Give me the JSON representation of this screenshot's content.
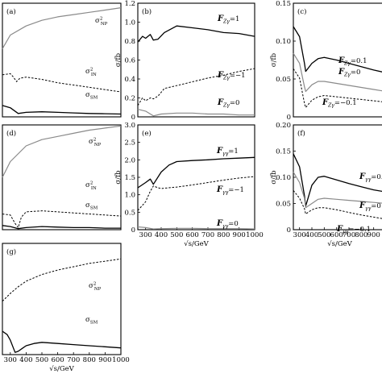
{
  "chart_data": [
    {
      "id": "a",
      "type": "line",
      "panel_label": "(a)",
      "xlim": [
        250,
        1000
      ],
      "ylim": [
        0,
        1
      ],
      "x_ticks": [],
      "y_ticks": [],
      "xlabel": "",
      "ylabel": "",
      "series": [
        {
          "key": "NP",
          "label": "σ²NP",
          "style": "solid-gray",
          "x": [
            250,
            300,
            400,
            500,
            600,
            700,
            800,
            900,
            1000
          ],
          "y": [
            0.6,
            0.72,
            0.8,
            0.85,
            0.88,
            0.9,
            0.92,
            0.94,
            0.96
          ]
        },
        {
          "key": "IN",
          "label": "σ²IN",
          "style": "dashed",
          "x": [
            250,
            300,
            320,
            340,
            360,
            400,
            500,
            600,
            700,
            800,
            900,
            1000
          ],
          "y": [
            0.37,
            0.38,
            0.35,
            0.31,
            0.34,
            0.35,
            0.33,
            0.3,
            0.28,
            0.26,
            0.24,
            0.22
          ]
        },
        {
          "key": "SM",
          "label": "σSM",
          "style": "solid",
          "x": [
            250,
            300,
            350,
            400,
            500,
            600,
            700,
            800,
            900,
            1000
          ],
          "y": [
            0.1,
            0.08,
            0.03,
            0.04,
            0.045,
            0.04,
            0.035,
            0.03,
            0.028,
            0.025
          ]
        }
      ]
    },
    {
      "id": "b",
      "type": "line",
      "panel_label": "(b)",
      "xlim": [
        250,
        1000
      ],
      "ylim": [
        0,
        1.2
      ],
      "x_ticks": [],
      "y_ticks": [
        "0",
        "0.2",
        "0.4",
        "0.6",
        "0.8",
        "1.0",
        "1.2"
      ],
      "xlabel": "",
      "ylabel": "σ/fb",
      "series": [
        {
          "key": "p1",
          "label": "=1",
          "style": "solid",
          "x": [
            250,
            280,
            300,
            330,
            350,
            380,
            420,
            500,
            600,
            700,
            800,
            900,
            1000
          ],
          "y": [
            0.79,
            0.85,
            0.83,
            0.87,
            0.81,
            0.82,
            0.89,
            0.96,
            0.94,
            0.92,
            0.89,
            0.88,
            0.85
          ]
        },
        {
          "key": "m1",
          "label": "=−1",
          "style": "dashed",
          "x": [
            250,
            280,
            300,
            330,
            350,
            380,
            420,
            500,
            600,
            700,
            800,
            900,
            1000
          ],
          "y": [
            0.12,
            0.2,
            0.17,
            0.2,
            0.19,
            0.22,
            0.3,
            0.33,
            0.37,
            0.41,
            0.44,
            0.48,
            0.51
          ]
        },
        {
          "key": "z0",
          "label": "=0",
          "style": "solid-gray",
          "x": [
            250,
            300,
            350,
            400,
            500,
            600,
            700,
            800,
            900,
            1000
          ],
          "y": [
            0.08,
            0.06,
            0.01,
            0.03,
            0.04,
            0.04,
            0.03,
            0.03,
            0.02,
            0.02
          ]
        }
      ]
    },
    {
      "id": "c",
      "type": "line",
      "panel_label": "(c)",
      "xlim": [
        250,
        1000
      ],
      "ylim": [
        0,
        0.17
      ],
      "x_ticks": [],
      "y_ticks": [
        "0",
        "0.05",
        "0.10",
        "0.15"
      ],
      "xlabel": "",
      "ylabel": "σ/fb",
      "series": [
        {
          "key": "p",
          "label": "=0.1",
          "style": "solid",
          "x": [
            250,
            300,
            340,
            350,
            400,
            450,
            500,
            600,
            700,
            800,
            900,
            1000
          ],
          "y": [
            0.135,
            0.12,
            0.08,
            0.068,
            0.08,
            0.087,
            0.089,
            0.085,
            0.08,
            0.075,
            0.07,
            0.066
          ]
        },
        {
          "key": "z",
          "label": "=0",
          "style": "solid-gray",
          "x": [
            250,
            300,
            340,
            350,
            400,
            450,
            500,
            600,
            700,
            800,
            900,
            1000
          ],
          "y": [
            0.095,
            0.08,
            0.045,
            0.038,
            0.048,
            0.053,
            0.053,
            0.05,
            0.047,
            0.044,
            0.041,
            0.038
          ]
        },
        {
          "key": "m",
          "label": "=−0.1",
          "style": "dashed",
          "x": [
            250,
            300,
            340,
            350,
            400,
            450,
            500,
            600,
            700,
            800,
            900,
            1000
          ],
          "y": [
            0.072,
            0.058,
            0.02,
            0.014,
            0.025,
            0.03,
            0.032,
            0.03,
            0.028,
            0.026,
            0.024,
            0.022
          ]
        }
      ]
    },
    {
      "id": "d",
      "type": "line",
      "panel_label": "(d)",
      "xlim": [
        250,
        1000
      ],
      "ylim": [
        0,
        1
      ],
      "x_ticks": [],
      "y_ticks": [],
      "xlabel": "",
      "ylabel": "",
      "series": [
        {
          "key": "NP",
          "label": "σ²NP",
          "style": "solid-gray",
          "x": [
            250,
            300,
            400,
            500,
            600,
            700,
            800,
            900,
            1000
          ],
          "y": [
            0.5,
            0.65,
            0.8,
            0.86,
            0.89,
            0.92,
            0.95,
            0.97,
            0.99
          ]
        },
        {
          "key": "IN",
          "label": "σ²IN",
          "style": "dashed",
          "x": [
            250,
            300,
            330,
            350,
            370,
            400,
            500,
            600,
            700,
            800,
            900,
            1000
          ],
          "y": [
            0.15,
            0.14,
            0.06,
            0.02,
            0.12,
            0.17,
            0.18,
            0.17,
            0.16,
            0.15,
            0.14,
            0.13
          ]
        },
        {
          "key": "SM",
          "label": "σSM",
          "style": "solid",
          "x": [
            250,
            300,
            350,
            400,
            500,
            600,
            700,
            800,
            900,
            1000
          ],
          "y": [
            0.04,
            0.03,
            0.01,
            0.02,
            0.03,
            0.025,
            0.02,
            0.02,
            0.015,
            0.015
          ]
        }
      ]
    },
    {
      "id": "e",
      "type": "line",
      "panel_label": "(e)",
      "xlim": [
        250,
        1000
      ],
      "ylim": [
        0,
        3.0
      ],
      "x_ticks": [
        "300",
        "400",
        "500",
        "600",
        "700",
        "800",
        "900",
        "1000"
      ],
      "y_ticks": [
        "0",
        "0.5",
        "1.0",
        "1.5",
        "2.0",
        "2.5",
        "3.0"
      ],
      "xlabel": "√s/GeV",
      "ylabel": "σ/fb",
      "series": [
        {
          "key": "p1",
          "label": "=1",
          "style": "solid",
          "x": [
            250,
            300,
            330,
            350,
            400,
            450,
            500,
            600,
            700,
            800,
            900,
            1000
          ],
          "y": [
            1.2,
            1.35,
            1.45,
            1.3,
            1.65,
            1.85,
            1.95,
            1.98,
            2.0,
            2.03,
            2.05,
            2.07
          ]
        },
        {
          "key": "m1",
          "label": "=−1",
          "style": "dashed",
          "x": [
            250,
            300,
            330,
            350,
            380,
            400,
            500,
            600,
            700,
            800,
            900,
            1000
          ],
          "y": [
            0.55,
            0.8,
            1.1,
            1.25,
            1.2,
            1.18,
            1.22,
            1.28,
            1.35,
            1.42,
            1.48,
            1.52
          ]
        },
        {
          "key": "z0",
          "label": "=0",
          "style": "solid-gray",
          "x": [
            250,
            300,
            350,
            400,
            500,
            600,
            700,
            800,
            900,
            1000
          ],
          "y": [
            0.08,
            0.06,
            0.02,
            0.03,
            0.04,
            0.04,
            0.03,
            0.03,
            0.03,
            0.02
          ]
        }
      ]
    },
    {
      "id": "f",
      "type": "line",
      "panel_label": "(f)",
      "xlim": [
        250,
        1000
      ],
      "ylim": [
        0,
        0.2
      ],
      "x_ticks": [
        "300",
        "400",
        "500",
        "600",
        "700",
        "800",
        "900"
      ],
      "y_ticks": [
        "0",
        "0.05",
        "0.10",
        "0.15",
        "0.20"
      ],
      "xlabel": "√s/GeV",
      "ylabel": "σ/fb",
      "series": [
        {
          "key": "p",
          "label": "=0.",
          "style": "solid",
          "x": [
            250,
            300,
            340,
            350,
            400,
            450,
            500,
            600,
            700,
            800,
            900,
            1000
          ],
          "y": [
            0.145,
            0.12,
            0.065,
            0.045,
            0.085,
            0.1,
            0.102,
            0.095,
            0.088,
            0.082,
            0.076,
            0.072
          ]
        },
        {
          "key": "z",
          "label": "=0",
          "style": "solid-gray",
          "x": [
            250,
            300,
            340,
            350,
            400,
            450,
            500,
            600,
            700,
            800,
            900,
            1000
          ],
          "y": [
            0.11,
            0.09,
            0.06,
            0.042,
            0.05,
            0.058,
            0.06,
            0.058,
            0.056,
            0.054,
            0.052,
            0.05
          ]
        },
        {
          "key": "m",
          "label": "=−0.1",
          "style": "dashed",
          "x": [
            250,
            300,
            340,
            350,
            400,
            450,
            500,
            600,
            700,
            800,
            900,
            1000
          ],
          "y": [
            0.075,
            0.06,
            0.04,
            0.03,
            0.038,
            0.042,
            0.042,
            0.038,
            0.033,
            0.028,
            0.024,
            0.02
          ]
        }
      ]
    },
    {
      "id": "g",
      "type": "line",
      "panel_label": "(g)",
      "xlim": [
        250,
        1000
      ],
      "ylim": [
        0,
        1
      ],
      "x_ticks": [
        "300",
        "400",
        "500",
        "600",
        "700",
        "800",
        "900",
        "1000"
      ],
      "y_ticks": [],
      "xlabel": "√s/GeV",
      "ylabel": "",
      "series": [
        {
          "key": "NP",
          "label": "σ²NP",
          "style": "dashed",
          "x": [
            250,
            300,
            350,
            400,
            500,
            600,
            700,
            800,
            900,
            1000
          ],
          "y": [
            0.48,
            0.55,
            0.61,
            0.66,
            0.72,
            0.76,
            0.79,
            0.82,
            0.84,
            0.86
          ]
        },
        {
          "key": "SM",
          "label": "σSM",
          "style": "solid",
          "x": [
            250,
            280,
            300,
            330,
            350,
            380,
            400,
            450,
            500,
            600,
            700,
            800,
            900,
            1000
          ],
          "y": [
            0.21,
            0.18,
            0.13,
            0.02,
            0.03,
            0.06,
            0.08,
            0.1,
            0.11,
            0.1,
            0.09,
            0.08,
            0.07,
            0.06
          ]
        }
      ]
    }
  ]
}
